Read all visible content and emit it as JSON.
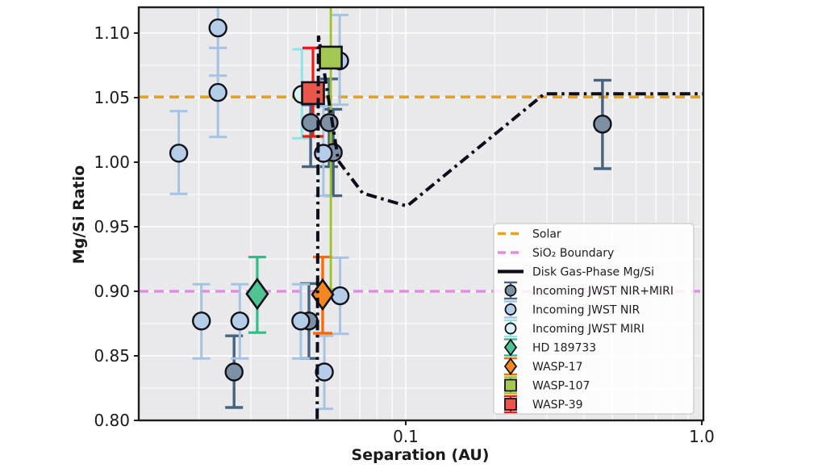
{
  "chart_data": {
    "type": "scatter",
    "title": "",
    "xlabel": "Separation (AU)",
    "ylabel": "Mg/Si Ratio",
    "xscale": "log",
    "xlim": [
      0.01253,
      1.0126
    ],
    "ylim": [
      0.8,
      1.12
    ],
    "xticks": [
      {
        "value": 0.1,
        "label": "0.1"
      },
      {
        "value": 1.0,
        "label": "1.0"
      }
    ],
    "x_minor_gridlines": [
      0.02,
      0.03,
      0.04,
      0.05,
      0.06,
      0.07,
      0.08,
      0.09,
      0.2,
      0.3,
      0.4,
      0.5,
      0.6,
      0.7,
      0.8,
      0.9
    ],
    "yticks": [
      {
        "value": 0.8,
        "label": "0.80"
      },
      {
        "value": 0.85,
        "label": "0.85"
      },
      {
        "value": 0.9,
        "label": "0.90"
      },
      {
        "value": 0.95,
        "label": "0.95"
      },
      {
        "value": 1.0,
        "label": "1.00"
      },
      {
        "value": 1.05,
        "label": "1.05"
      },
      {
        "value": 1.1,
        "label": "1.10"
      }
    ],
    "y_minor_gridlines": [
      0.825,
      0.875,
      0.925,
      0.975,
      1.025,
      1.075
    ],
    "grid": true,
    "styles": {
      "plot_background": "#E9E9EB",
      "grid_color": "#FFFFFF",
      "spine_color": "#1E1E1E",
      "text_color": "#1A1A1A",
      "marker_edge": "#111118"
    },
    "reference_lines": [
      {
        "id": "solar",
        "label": "Solar",
        "y": 1.0505,
        "color": "#E2A31F"
      },
      {
        "id": "sio2",
        "label": "SiO₂ Boundary",
        "y": 0.9,
        "color": "#E08FE0"
      }
    ],
    "disk_curve": {
      "label": "Disk Gas-Phase Mg/Si",
      "color": "#0D0D1B",
      "points": [
        [
          0.0502,
          0.801
        ],
        [
          0.0507,
          1.098
        ],
        [
          0.0592,
          1.001
        ],
        [
          0.0715,
          0.976
        ],
        [
          0.101,
          0.966
        ],
        [
          0.294,
          1.053
        ],
        [
          1.0126,
          1.053
        ]
      ]
    },
    "series": [
      {
        "name": "Incoming JWST MIRI",
        "marker": "circle",
        "layer": 1,
        "fill": "#D9F3F2",
        "err_color": "#8FE5E5",
        "err_width": 3,
        "cap": 12,
        "points": [
          {
            "x": 0.0446,
            "y": 1.0525,
            "lo": 1.0185,
            "hi": 1.0875
          }
        ]
      },
      {
        "name": "Incoming JWST NIR+MIRI",
        "marker": "circle",
        "layer": 1,
        "fill": "#7E90A4",
        "err_color": "#46647F",
        "err_width": 3.4,
        "cap": 11,
        "points": [
          {
            "x": 0.0263,
            "y": 0.8375,
            "lo": 0.81,
            "hi": 0.8655
          },
          {
            "x": 0.0477,
            "y": 1.0306,
            "lo": 0.9965,
            "hi": 1.0445
          },
          {
            "x": 0.0551,
            "y": 1.0306,
            "lo": 0.9965,
            "hi": 1.0645
          },
          {
            "x": 0.0569,
            "y": 1.0075,
            "lo": 0.974,
            "hi": 1.041
          },
          {
            "x": 0.0471,
            "y": 0.877,
            "lo": 0.848,
            "hi": 0.906
          },
          {
            "x": 0.462,
            "y": 1.0295,
            "lo": 0.995,
            "hi": 1.0635
          }
        ]
      },
      {
        "name": "Incoming JWST NIR",
        "marker": "circle",
        "layer": 1,
        "fill": "#B5CDE9",
        "err_color": "#A5C3E3",
        "err_width": 3,
        "cap": 11,
        "points": [
          {
            "x": 0.0171,
            "y": 1.007,
            "lo": 0.9755,
            "hi": 1.0395
          },
          {
            "x": 0.0232,
            "y": 1.104,
            "lo": 1.067,
            "hi": 1.155
          },
          {
            "x": 0.0232,
            "y": 1.054,
            "lo": 1.0195,
            "hi": 1.0885
          },
          {
            "x": 0.0204,
            "y": 0.877,
            "lo": 0.848,
            "hi": 0.9055
          },
          {
            "x": 0.0275,
            "y": 0.877,
            "lo": 0.848,
            "hi": 0.9055
          },
          {
            "x": 0.0442,
            "y": 0.877,
            "lo": 0.848,
            "hi": 0.9055
          },
          {
            "x": 0.0531,
            "y": 0.8375,
            "lo": 0.809,
            "hi": 0.8655
          },
          {
            "x": 0.06,
            "y": 0.8965,
            "lo": 0.867,
            "hi": 0.926
          },
          {
            "x": 0.0527,
            "y": 1.0069,
            "lo": 0.974,
            "hi": 1.0435
          },
          {
            "x": 0.0598,
            "y": 1.0785,
            "lo": 1.0445,
            "hi": 1.114
          }
        ]
      },
      {
        "name": "HD 189733",
        "marker": "diamond",
        "layer": 1,
        "fill": "#4FC492",
        "err_color": "#2EBE87",
        "err_width": 3.2,
        "cap": 11,
        "points": [
          {
            "x": 0.0315,
            "y": 0.898,
            "lo": 0.868,
            "hi": 0.9265
          }
        ]
      },
      {
        "name": "WASP-17",
        "marker": "diamond",
        "layer": 1,
        "fill": "#F6871E",
        "err_color": "#FA6B05",
        "err_width": 3.4,
        "cap": 12,
        "points": [
          {
            "x": 0.0524,
            "y": 0.8975,
            "lo": 0.8675,
            "hi": 0.9265
          }
        ]
      },
      {
        "name": "WASP-39",
        "marker": "square",
        "layer": 1,
        "fill": "#EA564C",
        "err_color": "#EF1A10",
        "err_width": 3.2,
        "cap": 13,
        "points": [
          {
            "x": 0.0486,
            "y": 1.0535,
            "lo": 1.02,
            "hi": 1.0885
          }
        ]
      },
      {
        "name": "WASP-107",
        "marker": "square",
        "layer": 2,
        "fill": "#A3C752",
        "err_color": "#9CC325",
        "err_width": 2.8,
        "cap": 6,
        "points": [
          {
            "x": 0.0558,
            "y": 1.081,
            "lo": 0.9015,
            "hi": 1.135
          }
        ]
      }
    ],
    "legend": {
      "items": [
        {
          "label": "Solar",
          "swatch": "dash",
          "color": "#E2A31F"
        },
        {
          "label": "SiO₂ Boundary",
          "swatch": "dash",
          "color": "#E08FE0"
        },
        {
          "label": "Disk Gas-Phase Mg/Si",
          "swatch": "line",
          "color": "#0D0D1B"
        },
        {
          "label": "Incoming JWST NIR+MIRI",
          "swatch": "circle",
          "fill": "#7E90A4",
          "err": "#46647F"
        },
        {
          "label": "Incoming JWST NIR",
          "swatch": "circle",
          "fill": "#B5CDE9",
          "err": "#A5C3E3"
        },
        {
          "label": "Incoming JWST MIRI",
          "swatch": "circle",
          "fill": "#D9F3F2",
          "err": "#8FE5E5"
        },
        {
          "label": "HD 189733",
          "swatch": "diamond",
          "fill": "#4FC492",
          "err": "#2EBE87"
        },
        {
          "label": "WASP-17",
          "swatch": "diamond",
          "fill": "#F6871E",
          "err": "#FA6B05"
        },
        {
          "label": "WASP-107",
          "swatch": "square",
          "fill": "#A3C752",
          "err": "#9CC325"
        },
        {
          "label": "WASP-39",
          "swatch": "square",
          "fill": "#EA564C",
          "err": "#EF1A10"
        }
      ]
    }
  }
}
